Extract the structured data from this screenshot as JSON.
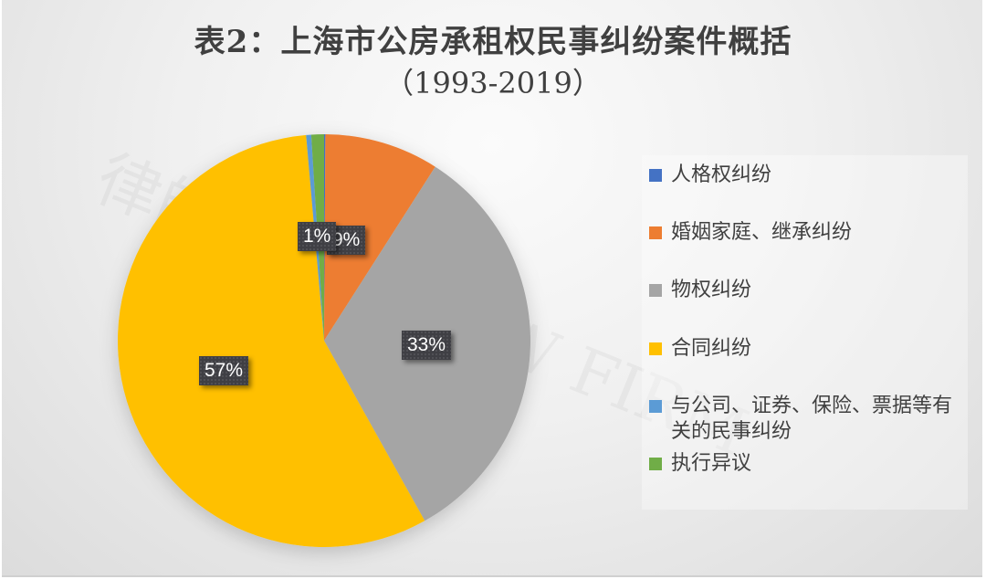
{
  "chart_data": {
    "type": "pie",
    "title": "表2：上海市公房承租权民事纠纷案件概括",
    "subtitle": "（1993-2019）",
    "categories": [
      "人格权纠纷",
      "婚姻家庭、继承纠纷",
      "物权纠纷",
      "合同纠纷",
      "与公司、证券、保险、票据等有关的民事纠纷",
      "执行异议"
    ],
    "values": [
      0.1,
      9,
      33,
      57,
      0.4,
      1
    ],
    "data_labels": [
      "",
      "9%",
      "33%",
      "57%",
      "",
      "1%"
    ],
    "colors": [
      "#4472c4",
      "#ed7d31",
      "#a5a5a5",
      "#ffc000",
      "#5b9bd5",
      "#70ad47"
    ],
    "legend_position": "right",
    "start_angle_deg": 0,
    "direction": "clockwise"
  },
  "title": {
    "line1": "表2：上海市公房承租权民事纠纷案件概括",
    "line2": "（1993-2019）"
  },
  "legend": {
    "items": [
      {
        "label": "人格权纠纷",
        "color": "#4472c4"
      },
      {
        "label": "婚姻家庭、继承纠纷",
        "color": "#ed7d31"
      },
      {
        "label": "物权纠纷",
        "color": "#a5a5a5"
      },
      {
        "label": "合同纠纷",
        "color": "#ffc000"
      },
      {
        "label": "与公司、证券、保险、票据等有关的民事纠纷",
        "color": "#5b9bd5"
      },
      {
        "label": "执行异议",
        "color": "#70ad47"
      }
    ]
  },
  "labels": {
    "exec": "1%",
    "marriage": "9%",
    "property": "33%",
    "contract": "57%"
  },
  "watermark": "律師事務所 LAW FIRM"
}
